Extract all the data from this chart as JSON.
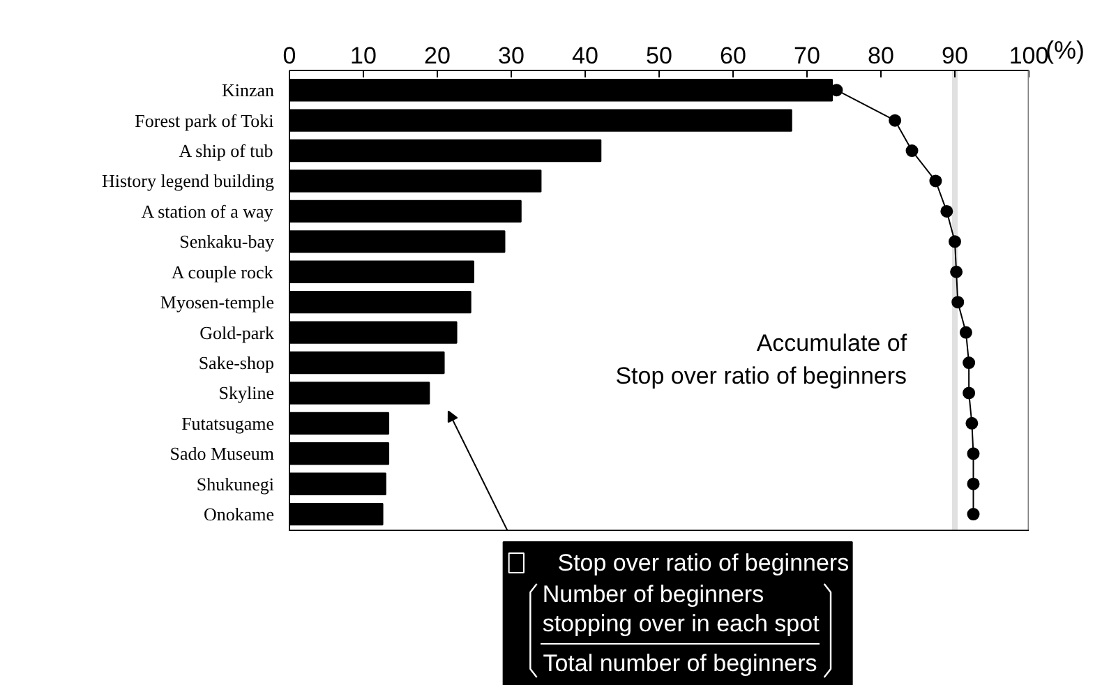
{
  "chart_data": {
    "type": "bar",
    "orientation": "horizontal",
    "xlabel": "(%)",
    "categories": [
      "Kinzan",
      "Forest park of Toki",
      "A ship of tub",
      "History legend building",
      "A station of a way",
      "Senkaku-bay",
      "A couple rock",
      "Myosen-temple",
      "Gold-park",
      "Sake-shop",
      "Skyline",
      "Futatsugame",
      "Sado Museum",
      "Shukunegi",
      "Onokame"
    ],
    "series": [
      {
        "name": "Stop over ratio of beginners",
        "type": "bar",
        "color": "#000000",
        "values": [
          73.4,
          67.9,
          42.1,
          34.0,
          31.3,
          29.1,
          24.9,
          24.5,
          22.6,
          20.9,
          18.9,
          13.4,
          13.4,
          13.0,
          12.6
        ]
      },
      {
        "name": "Accumulate of\nStop over ratio of beginners",
        "type": "line",
        "color": "#000000",
        "marker": "circle",
        "values": [
          74.0,
          81.9,
          84.2,
          87.4,
          88.9,
          90.0,
          90.2,
          90.4,
          91.5,
          91.9,
          91.9,
          92.3,
          92.5,
          92.5,
          92.5
        ]
      }
    ],
    "xlim": [
      0,
      100
    ],
    "xticks": [
      0,
      10,
      20,
      30,
      40,
      50,
      60,
      70,
      80,
      90,
      100
    ],
    "ref_lines": [
      {
        "axis": "x",
        "value": 90,
        "color": "#e0e0e0"
      }
    ],
    "annotations": [
      "Number of beginners\nstopping over in each spot",
      "Total number of beginners"
    ],
    "grid": false,
    "legend": "bottom"
  }
}
